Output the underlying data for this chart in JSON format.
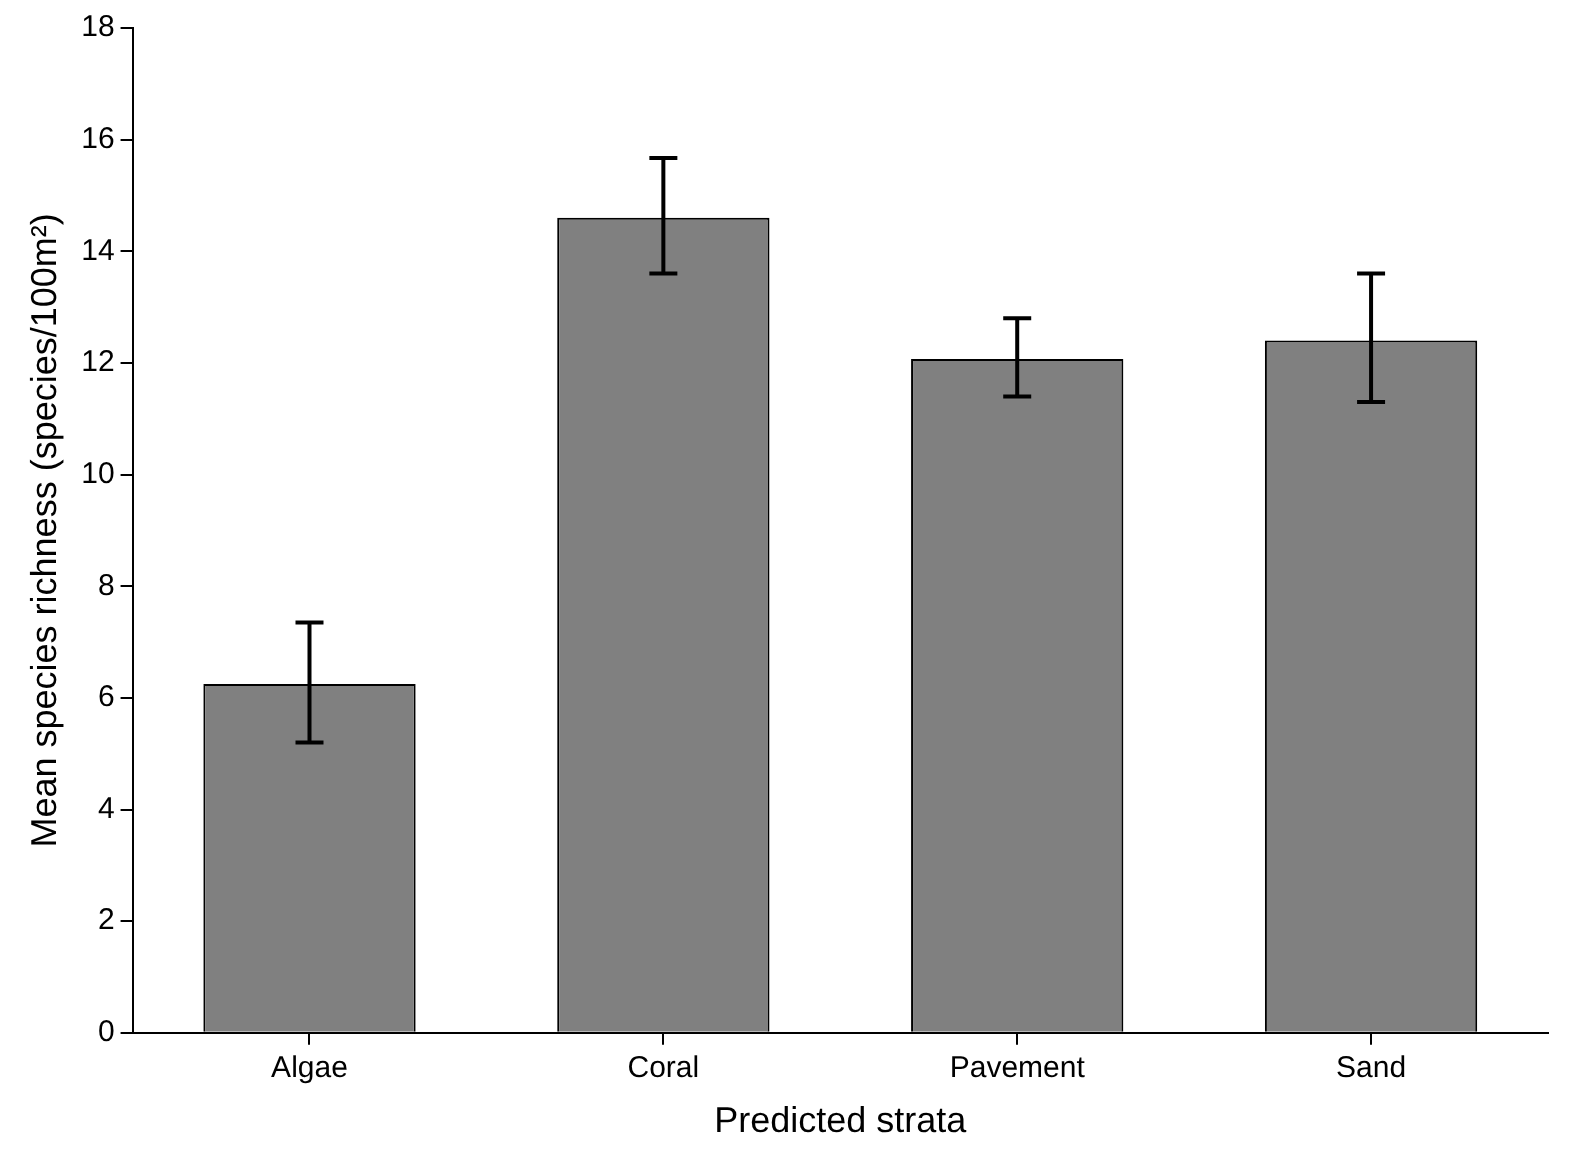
{
  "chart_data": {
    "type": "bar",
    "xlabel": "Predicted strata",
    "ylabel": "Mean species richness (species/100m²)",
    "categories": [
      "Algae",
      "Coral",
      "Pavement",
      "Sand"
    ],
    "values": [
      6.25,
      14.6,
      12.07,
      12.4
    ],
    "errors": [
      [
        5.2,
        7.35
      ],
      [
        13.6,
        15.67
      ],
      [
        11.4,
        12.8
      ],
      [
        11.3,
        13.6
      ]
    ],
    "color": "#808080",
    "ylim": [
      0,
      18
    ],
    "yticks": [
      0,
      2,
      4,
      6,
      8,
      10,
      12,
      14,
      16,
      18
    ],
    "grid": false,
    "legend": false
  }
}
